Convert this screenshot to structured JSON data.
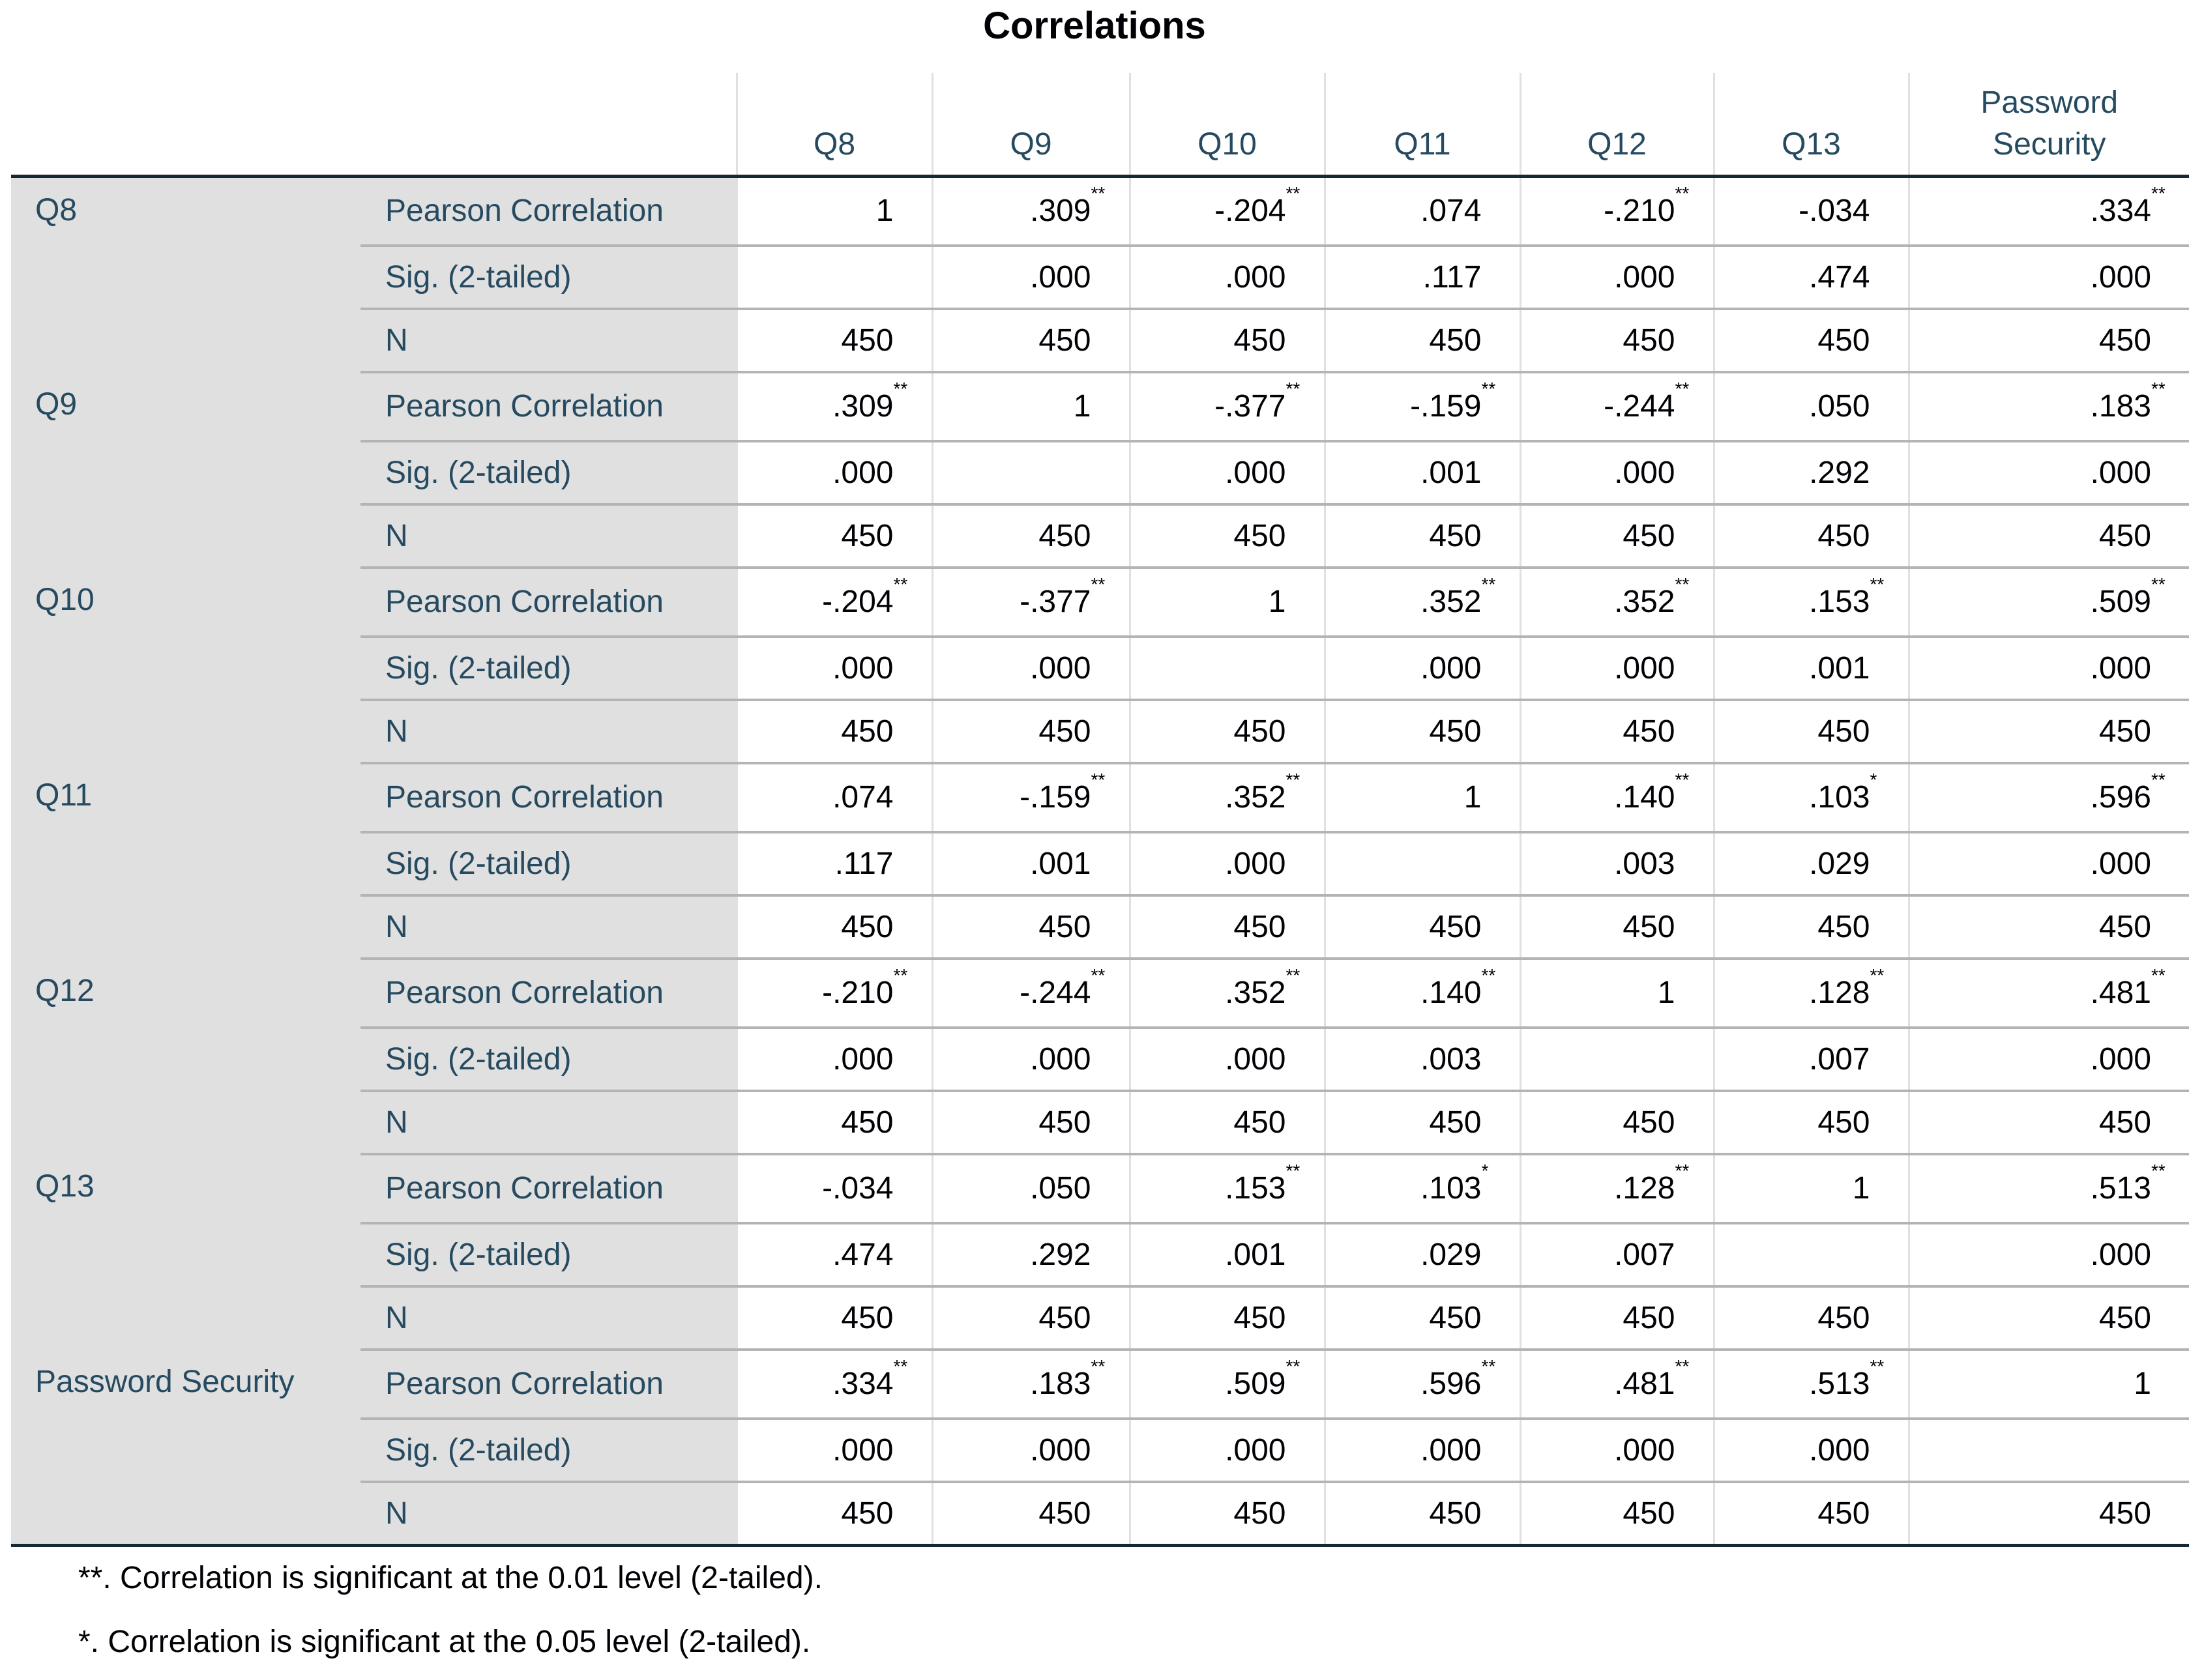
{
  "title": "Correlations",
  "columns": [
    "Q8",
    "Q9",
    "Q10",
    "Q11",
    "Q12",
    "Q13",
    "Password Security"
  ],
  "stat_labels": {
    "pearson": "Pearson Correlation",
    "sig": "Sig. (2-tailed)",
    "n": "N"
  },
  "rows": [
    {
      "label": "Q8",
      "pearson": [
        {
          "v": "1",
          "m": ""
        },
        {
          "v": ".309",
          "m": "**"
        },
        {
          "v": "-.204",
          "m": "**"
        },
        {
          "v": ".074",
          "m": ""
        },
        {
          "v": "-.210",
          "m": "**"
        },
        {
          "v": "-.034",
          "m": ""
        },
        {
          "v": ".334",
          "m": "**"
        }
      ],
      "sig": [
        "",
        ".000",
        ".000",
        ".117",
        ".000",
        ".474",
        ".000"
      ],
      "n": [
        "450",
        "450",
        "450",
        "450",
        "450",
        "450",
        "450"
      ]
    },
    {
      "label": "Q9",
      "pearson": [
        {
          "v": ".309",
          "m": "**"
        },
        {
          "v": "1",
          "m": ""
        },
        {
          "v": "-.377",
          "m": "**"
        },
        {
          "v": "-.159",
          "m": "**"
        },
        {
          "v": "-.244",
          "m": "**"
        },
        {
          "v": ".050",
          "m": ""
        },
        {
          "v": ".183",
          "m": "**"
        }
      ],
      "sig": [
        ".000",
        "",
        ".000",
        ".001",
        ".000",
        ".292",
        ".000"
      ],
      "n": [
        "450",
        "450",
        "450",
        "450",
        "450",
        "450",
        "450"
      ]
    },
    {
      "label": "Q10",
      "pearson": [
        {
          "v": "-.204",
          "m": "**"
        },
        {
          "v": "-.377",
          "m": "**"
        },
        {
          "v": "1",
          "m": ""
        },
        {
          "v": ".352",
          "m": "**"
        },
        {
          "v": ".352",
          "m": "**"
        },
        {
          "v": ".153",
          "m": "**"
        },
        {
          "v": ".509",
          "m": "**"
        }
      ],
      "sig": [
        ".000",
        ".000",
        "",
        ".000",
        ".000",
        ".001",
        ".000"
      ],
      "n": [
        "450",
        "450",
        "450",
        "450",
        "450",
        "450",
        "450"
      ]
    },
    {
      "label": "Q11",
      "pearson": [
        {
          "v": ".074",
          "m": ""
        },
        {
          "v": "-.159",
          "m": "**"
        },
        {
          "v": ".352",
          "m": "**"
        },
        {
          "v": "1",
          "m": ""
        },
        {
          "v": ".140",
          "m": "**"
        },
        {
          "v": ".103",
          "m": "*"
        },
        {
          "v": ".596",
          "m": "**"
        }
      ],
      "sig": [
        ".117",
        ".001",
        ".000",
        "",
        ".003",
        ".029",
        ".000"
      ],
      "n": [
        "450",
        "450",
        "450",
        "450",
        "450",
        "450",
        "450"
      ]
    },
    {
      "label": "Q12",
      "pearson": [
        {
          "v": "-.210",
          "m": "**"
        },
        {
          "v": "-.244",
          "m": "**"
        },
        {
          "v": ".352",
          "m": "**"
        },
        {
          "v": ".140",
          "m": "**"
        },
        {
          "v": "1",
          "m": ""
        },
        {
          "v": ".128",
          "m": "**"
        },
        {
          "v": ".481",
          "m": "**"
        }
      ],
      "sig": [
        ".000",
        ".000",
        ".000",
        ".003",
        "",
        ".007",
        ".000"
      ],
      "n": [
        "450",
        "450",
        "450",
        "450",
        "450",
        "450",
        "450"
      ]
    },
    {
      "label": "Q13",
      "pearson": [
        {
          "v": "-.034",
          "m": ""
        },
        {
          "v": ".050",
          "m": ""
        },
        {
          "v": ".153",
          "m": "**"
        },
        {
          "v": ".103",
          "m": "*"
        },
        {
          "v": ".128",
          "m": "**"
        },
        {
          "v": "1",
          "m": ""
        },
        {
          "v": ".513",
          "m": "**"
        }
      ],
      "sig": [
        ".474",
        ".292",
        ".001",
        ".029",
        ".007",
        "",
        ".000"
      ],
      "n": [
        "450",
        "450",
        "450",
        "450",
        "450",
        "450",
        "450"
      ]
    },
    {
      "label": "Password Security",
      "pearson": [
        {
          "v": ".334",
          "m": "**"
        },
        {
          "v": ".183",
          "m": "**"
        },
        {
          "v": ".509",
          "m": "**"
        },
        {
          "v": ".596",
          "m": "**"
        },
        {
          "v": ".481",
          "m": "**"
        },
        {
          "v": ".513",
          "m": "**"
        },
        {
          "v": "1",
          "m": ""
        }
      ],
      "sig": [
        ".000",
        ".000",
        ".000",
        ".000",
        ".000",
        ".000",
        ""
      ],
      "n": [
        "450",
        "450",
        "450",
        "450",
        "450",
        "450",
        "450"
      ]
    }
  ],
  "footnotes": [
    "**. Correlation is significant at the 0.01 level (2-tailed).",
    "*. Correlation is significant at the 0.05 level (2-tailed)."
  ],
  "colors": {
    "label_text": "#264a60",
    "row_header_bg": "#e0e0e0",
    "rule_dark": "#152935",
    "rule_light": "#b4b4b4"
  }
}
